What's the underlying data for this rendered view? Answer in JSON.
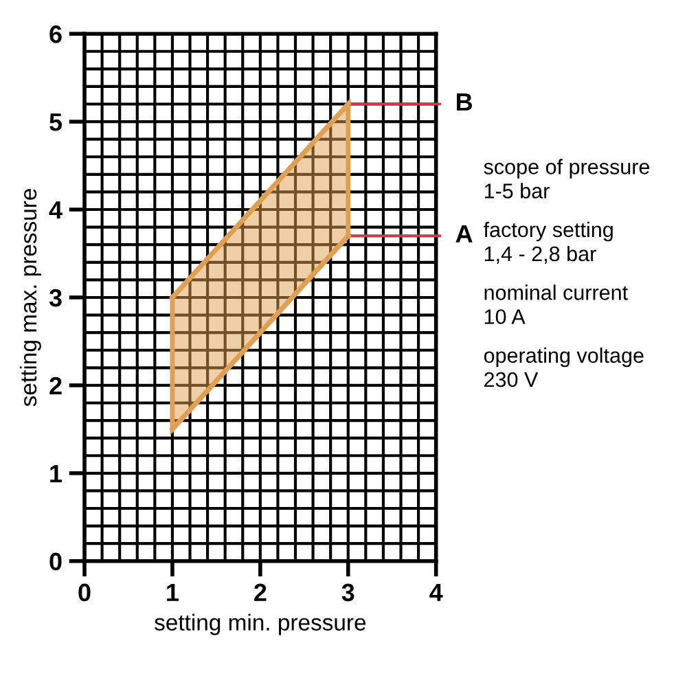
{
  "chart_data": {
    "type": "line",
    "xlabel": "setting min. pressure",
    "ylabel": "setting max. pressure",
    "x": [
      1,
      3
    ],
    "series": [
      {
        "color": "#e0a050",
        "values": [
          3.0,
          5.2
        ]
      },
      {
        "color": "#e0a050",
        "values": [
          1.5,
          3.7
        ]
      }
    ],
    "xlim": [
      0,
      4
    ],
    "ylim": [
      0,
      6
    ],
    "xticks": [
      0,
      {
        "value": 0.2,
        "label": null
      },
      {
        "value": 0.4,
        "label": null
      },
      {
        "value": 0.6,
        "label": null
      },
      {
        "value": 0.8,
        "label": null
      },
      1,
      {
        "value": 1.2,
        "label": null
      },
      {
        "value": 1.4,
        "label": null
      },
      {
        "value": 1.6,
        "label": null
      },
      {
        "value": 1.8,
        "label": null
      },
      2,
      {
        "value": 2.2,
        "label": null
      },
      {
        "value": 2.4,
        "label": null
      },
      {
        "value": 2.6,
        "label": null
      },
      {
        "value": 2.8,
        "label": null
      },
      3,
      {
        "value": 3.2,
        "label": null
      },
      {
        "value": 3.4,
        "label": null
      },
      {
        "value": 3.6,
        "label": null
      },
      {
        "value": 3.8,
        "label": null
      },
      4
    ],
    "yticks": [
      0,
      {
        "value": 0.2,
        "label": null
      },
      {
        "value": 0.4,
        "label": null
      },
      {
        "value": 0.6,
        "label": null
      },
      {
        "value": 0.8,
        "label": null
      },
      1,
      {
        "value": 1.2,
        "label": null
      },
      {
        "value": 1.4,
        "label": null
      },
      {
        "value": 1.6,
        "label": null
      },
      {
        "value": 1.8,
        "label": null
      },
      2,
      {
        "value": 2.2,
        "label": null
      },
      {
        "value": 2.4,
        "label": null
      },
      {
        "value": 2.6,
        "label": null
      },
      {
        "value": 2.8,
        "label": null
      },
      3,
      {
        "value": 3.2,
        "label": null
      },
      {
        "value": 3.4,
        "label": null
      },
      {
        "value": 3.6,
        "label": null
      },
      {
        "value": 3.8,
        "label": null
      },
      4,
      {
        "value": 4.2,
        "label": null
      },
      {
        "value": 4.4,
        "label": null
      },
      {
        "value": 4.6,
        "label": null
      },
      {
        "value": 4.8,
        "label": null
      },
      5,
      {
        "value": 5.2,
        "label": null
      },
      {
        "value": 5.4,
        "label": null
      },
      {
        "value": 5.6,
        "label": null
      },
      {
        "value": 5.8,
        "label": null
      },
      6
    ],
    "grid": true,
    "annotations": [
      {
        "text": "B",
        "x": 3,
        "y": 5.2
      },
      {
        "text": "A",
        "x": 3,
        "y": 3.7
      },
      "scope of pressure\n1-5 bar",
      "factory setting\n1,4 - 2,8 bar",
      "nominal current\n10 A",
      "operating voltage\n230 V"
    ]
  }
}
